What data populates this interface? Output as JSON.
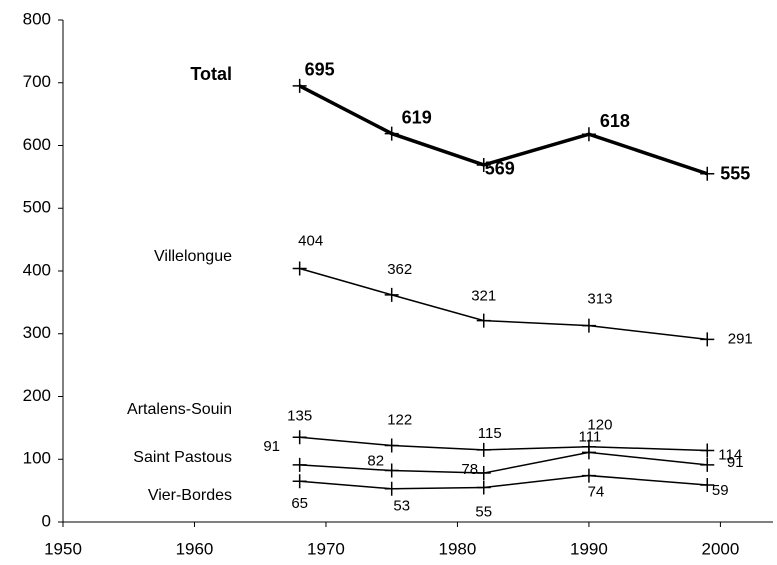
{
  "chart_data": {
    "type": "line",
    "x": [
      1968,
      1975,
      1982,
      1990,
      1999
    ],
    "series": [
      {
        "name": "Total",
        "color": "#000000",
        "values": [
          695,
          619,
          569,
          618,
          555
        ]
      },
      {
        "name": "Villelongue",
        "color": "#000000",
        "values": [
          404,
          362,
          321,
          313,
          291
        ]
      },
      {
        "name": "Artalens-Souin",
        "color": "#000000",
        "values": [
          135,
          122,
          115,
          120,
          114
        ]
      },
      {
        "name": "Saint Pastous",
        "color": "#000000",
        "values": [
          91,
          82,
          78,
          111,
          91
        ]
      },
      {
        "name": "Vier-Bordes",
        "color": "#000000",
        "values": [
          65,
          53,
          55,
          74,
          59
        ]
      }
    ],
    "xlim": [
      1950,
      2004
    ],
    "xticks": [
      1950,
      1960,
      1970,
      1980,
      1990,
      2000
    ],
    "ylim": [
      0,
      800
    ],
    "yticks": [
      0,
      100,
      200,
      300,
      400,
      500,
      600,
      700,
      800
    ],
    "grid": false
  }
}
